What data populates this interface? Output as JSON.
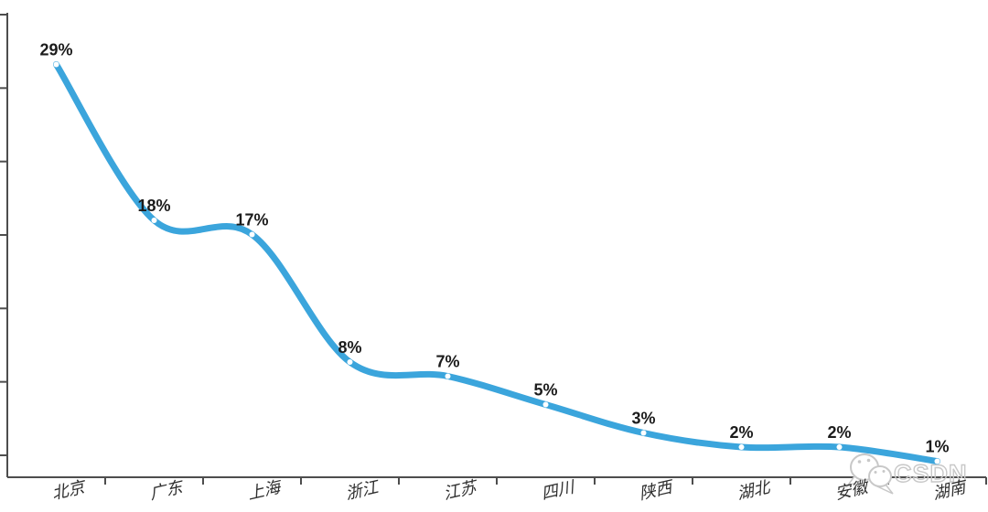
{
  "chart_data": {
    "type": "line",
    "title": "",
    "xlabel": "",
    "ylabel": "",
    "categories": [
      "北京",
      "广东",
      "上海",
      "浙江",
      "江苏",
      "四川",
      "陕西",
      "湖北",
      "安徽",
      "湖南"
    ],
    "values": [
      29,
      18,
      17,
      8,
      7,
      5,
      3,
      2,
      2,
      1
    ],
    "data_labels": [
      "29%",
      "18%",
      "17%",
      "8%",
      "7%",
      "5%",
      "3%",
      "2%",
      "2%",
      "1%"
    ],
    "unit": "percent",
    "smooth": true,
    "grid": false,
    "legend_position": "none",
    "ylim": [
      0,
      33
    ],
    "y_axis_labels_visible": false,
    "y_tick_count": 7,
    "x_tick_style": "category-boundaries",
    "line_color": "#3ba5dc",
    "marker_color": "#ffffff",
    "data_label_color": "#1c1c1c",
    "axis_color": "#4d4d4d",
    "x_label_color": "#2e2e2e"
  },
  "watermark": {
    "icon": "wechat-icon",
    "text": "CSDN",
    "color": "#c8c8c8"
  }
}
